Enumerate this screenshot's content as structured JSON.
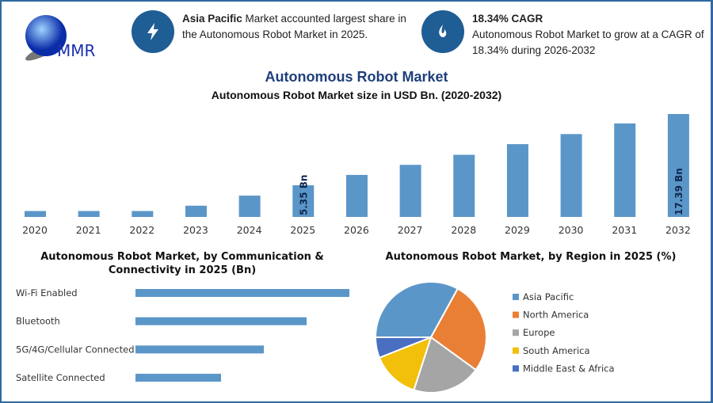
{
  "logo": {
    "text": "MMR"
  },
  "info1": {
    "icon": "lightning-icon",
    "bold": "Asia Pacific",
    "text": " Market accounted largest share in the Autonomous Robot Market in 2025."
  },
  "info2": {
    "icon": "growth-icon",
    "bold": "18.34% CAGR",
    "text": "Autonomous Robot Market to grow at a CAGR of 18.34% during 2026-2032"
  },
  "main_title": "Autonomous Robot Market",
  "colors": {
    "bar": "#5b96c8",
    "navy": "#1f3f7a",
    "accent": "#1f5d95"
  },
  "chart_data": [
    {
      "type": "bar",
      "title": "Autonomous Robot Market size in USD Bn. (2020-2032)",
      "categories": [
        "2020",
        "2021",
        "2022",
        "2023",
        "2024",
        "2025",
        "2026",
        "2027",
        "2028",
        "2029",
        "2030",
        "2031",
        "2032"
      ],
      "values": [
        1.0,
        1.0,
        1.0,
        1.9,
        3.6,
        5.35,
        7.1,
        8.8,
        10.5,
        12.3,
        14.0,
        15.8,
        17.39
      ],
      "data_labels": {
        "2025": "5.35 Bn",
        "2032": "17.39 Bn"
      },
      "ylim": [
        0,
        17.39
      ],
      "grid": false
    },
    {
      "type": "bar",
      "orientation": "horizontal",
      "title": "Autonomous Robot Market, by Communication & Connectivity in 2025 (Bn)",
      "categories": [
        "Wi-Fi Enabled",
        "Bluetooth",
        "5G/4G/Cellular Connected",
        "Satellite Connected"
      ],
      "relative_values": [
        1.0,
        0.8,
        0.6,
        0.4
      ]
    },
    {
      "type": "pie",
      "title": "Autonomous Robot Market, by Region in 2025 (%)",
      "categories": [
        "Asia Pacific",
        "North America",
        "Europe",
        "South America",
        "Middle East & Africa"
      ],
      "values": [
        33,
        27,
        20,
        14,
        6
      ],
      "colors": [
        "#5b96c8",
        "#e97f35",
        "#a5a5a5",
        "#f2bf0b",
        "#4a6fc0"
      ],
      "legend": "right"
    }
  ]
}
